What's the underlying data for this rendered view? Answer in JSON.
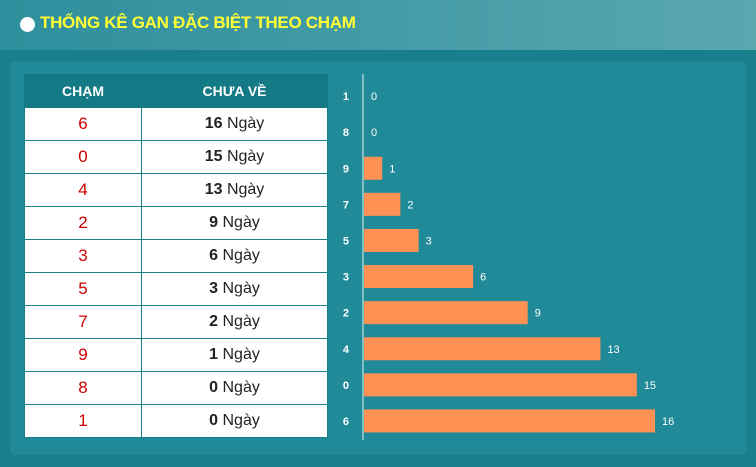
{
  "header": {
    "title": "THỐNG KÊ GAN ĐẶC BIỆT THEO CHẠM"
  },
  "table": {
    "col_cham": "CHẠM",
    "col_chua_ve": "CHƯA VỀ",
    "unit": "Ngày",
    "rows": [
      {
        "cham": "6",
        "days": "16"
      },
      {
        "cham": "0",
        "days": "15"
      },
      {
        "cham": "4",
        "days": "13"
      },
      {
        "cham": "2",
        "days": "9"
      },
      {
        "cham": "3",
        "days": "6"
      },
      {
        "cham": "5",
        "days": "3"
      },
      {
        "cham": "7",
        "days": "2"
      },
      {
        "cham": "9",
        "days": "1"
      },
      {
        "cham": "8",
        "days": "0"
      },
      {
        "cham": "1",
        "days": "0"
      }
    ]
  },
  "colors": {
    "bar": "#ff9155",
    "title": "#ffff33",
    "cham_text": "#cc0000"
  },
  "chart_data": {
    "type": "bar",
    "orientation": "horizontal",
    "categories": [
      "1",
      "8",
      "9",
      "7",
      "5",
      "3",
      "2",
      "4",
      "0",
      "6"
    ],
    "values": [
      0,
      0,
      1,
      2,
      3,
      6,
      9,
      13,
      15,
      16
    ],
    "xlim": [
      0,
      16
    ],
    "grid": false,
    "legend": "none",
    "data_labels": true
  }
}
